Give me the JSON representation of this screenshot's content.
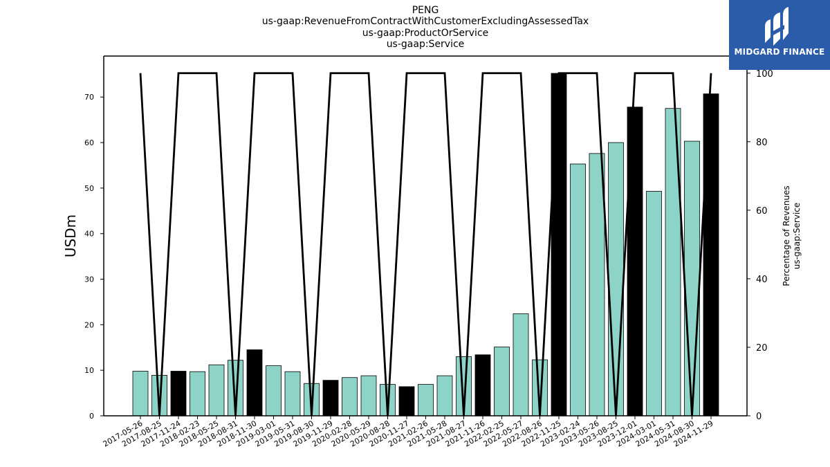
{
  "title_lines": [
    "PENG",
    "us-gaap:RevenueFromContractWithCustomerExcludingAssessedTax",
    "us-gaap:ProductOrService",
    "us-gaap:Service"
  ],
  "logo": {
    "text": "MIDGARD FINANCE",
    "background": "#2a5caa",
    "icon": "midgard-logo-icon"
  },
  "chart_data": {
    "type": "bar",
    "title": "PENG",
    "ylabel": "USDm",
    "y2label": [
      "Percentage of Revenues",
      "us-gaap:Service"
    ],
    "ylim": [
      0,
      79
    ],
    "y2lim": [
      0,
      105
    ],
    "yticks": [
      0,
      10,
      20,
      30,
      40,
      50,
      60,
      70
    ],
    "y2ticks": [
      0,
      20,
      40,
      60,
      80,
      100
    ],
    "categories": [
      "2017-05-26",
      "2017-08-25",
      "2017-11-24",
      "2018-02-23",
      "2018-05-25",
      "2018-08-31",
      "2018-11-30",
      "2019-03-01",
      "2019-05-31",
      "2019-08-30",
      "2019-11-29",
      "2020-02-28",
      "2020-05-29",
      "2020-08-28",
      "2020-11-27",
      "2021-02-26",
      "2021-05-28",
      "2021-08-27",
      "2021-11-26",
      "2022-02-25",
      "2022-05-27",
      "2022-08-26",
      "2022-11-25",
      "2023-02-24",
      "2023-05-26",
      "2023-08-25",
      "2023-12-01",
      "2024-03-01",
      "2024-05-31",
      "2024-08-30",
      "2024-11-29"
    ],
    "series": [
      {
        "values": [
          9.8,
          8.9,
          9.8,
          9.7,
          11.2,
          12.2,
          14.5,
          11.0,
          9.7,
          7.1,
          7.8,
          8.4,
          8.8,
          6.9,
          6.4,
          6.9,
          8.8,
          13.0,
          13.4,
          15.1,
          22.4,
          12.3,
          75.2,
          55.3,
          57.6,
          60.0,
          67.8,
          49.3,
          67.5,
          60.3,
          70.7
        ]
      },
      {
        "values": [
          100,
          0,
          100,
          100,
          100,
          0,
          100,
          100,
          100,
          0,
          100,
          100,
          100,
          0,
          100,
          100,
          100,
          0,
          100,
          100,
          100,
          0,
          100,
          100,
          100,
          0,
          100,
          100,
          100,
          0,
          100
        ]
      }
    ],
    "bar_colors": [
      "#8ed3c7",
      "#8ed3c7",
      "#000000",
      "#8ed3c7",
      "#8ed3c7",
      "#8ed3c7",
      "#000000",
      "#8ed3c7",
      "#8ed3c7",
      "#8ed3c7",
      "#000000",
      "#8ed3c7",
      "#8ed3c7",
      "#8ed3c7",
      "#000000",
      "#8ed3c7",
      "#8ed3c7",
      "#8ed3c7",
      "#000000",
      "#8ed3c7",
      "#8ed3c7",
      "#8ed3c7",
      "#000000",
      "#8ed3c7",
      "#8ed3c7",
      "#8ed3c7",
      "#000000",
      "#8ed3c7",
      "#8ed3c7",
      "#8ed3c7",
      "#000000"
    ],
    "line_color": "#000000",
    "grid": false
  }
}
